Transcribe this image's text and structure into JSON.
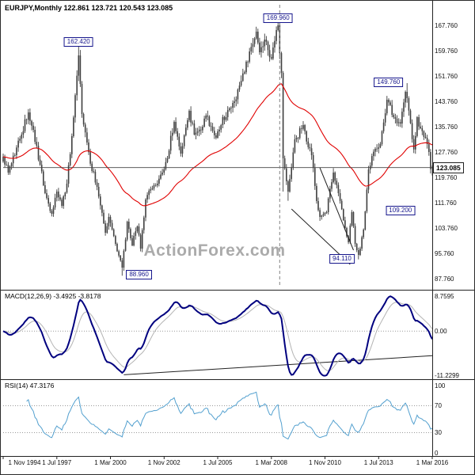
{
  "header": {
    "title": "EURJPY,Monthly 122.861 123.721 120.543 123.085",
    "watermark": "ActionForex.com"
  },
  "colors": {
    "candle": "#3f3f3f",
    "ema": "#e00000",
    "macd": "#00007f",
    "macd_signal": "#b4b4b4",
    "rsi": "#53a0cf",
    "callout": "#16168c",
    "watermark": "#ababab",
    "grid_dotted": "#999999",
    "trendline": "#222222"
  },
  "chart_data": {
    "type": "candlestick",
    "symbol": "EURJPY",
    "timeframe": "Monthly",
    "start_month": "1994-11",
    "end_month": "2016-03",
    "current": {
      "open": 122.861,
      "high": 123.721,
      "low": 120.543,
      "close": 123.085
    },
    "close_anchors": [
      [
        "1994-11",
        126.5
      ],
      [
        "1995-02",
        121.5
      ],
      [
        "1995-06",
        127.0
      ],
      [
        "1995-10",
        133.5
      ],
      [
        "1996-02",
        140.5
      ],
      [
        "1996-05",
        135.0
      ],
      [
        "1996-09",
        124.0
      ],
      [
        "1996-12",
        115.0
      ],
      [
        "1997-04",
        108.5
      ],
      [
        "1997-07",
        115.5
      ],
      [
        "1997-10",
        111.0
      ],
      [
        "1998-01",
        118.0
      ],
      [
        "1998-04",
        133.0
      ],
      [
        "1998-08",
        158.5
      ],
      [
        "1998-10",
        140.0
      ],
      [
        "1999-01",
        131.0
      ],
      [
        "1999-04",
        122.0
      ],
      [
        "1999-07",
        117.0
      ],
      [
        "1999-12",
        102.5
      ],
      [
        "2000-02",
        107.5
      ],
      [
        "2000-06",
        99.0
      ],
      [
        "2000-10",
        91.5
      ],
      [
        "2001-01",
        106.0
      ],
      [
        "2001-04",
        98.5
      ],
      [
        "2001-07",
        104.5
      ],
      [
        "2001-09",
        97.5
      ],
      [
        "2001-12",
        113.0
      ],
      [
        "2002-04",
        116.5
      ],
      [
        "2002-07",
        118.0
      ],
      [
        "2002-10",
        121.5
      ],
      [
        "2003-01",
        126.0
      ],
      [
        "2003-05",
        137.5
      ],
      [
        "2003-09",
        127.5
      ],
      [
        "2004-02",
        141.0
      ],
      [
        "2004-05",
        133.5
      ],
      [
        "2004-10",
        136.0
      ],
      [
        "2004-12",
        139.5
      ],
      [
        "2005-03",
        136.0
      ],
      [
        "2005-06",
        132.5
      ],
      [
        "2005-09",
        136.5
      ],
      [
        "2005-12",
        139.0
      ],
      [
        "2006-04",
        143.5
      ],
      [
        "2006-08",
        149.0
      ],
      [
        "2006-12",
        156.5
      ],
      [
        "2007-06",
        166.0
      ],
      [
        "2007-08",
        159.5
      ],
      [
        "2007-11",
        163.5
      ],
      [
        "2008-03",
        157.5
      ],
      [
        "2008-06",
        166.5
      ],
      [
        "2008-07",
        168.0
      ],
      [
        "2008-09",
        153.0
      ],
      [
        "2008-10",
        126.0
      ],
      [
        "2009-01",
        115.5
      ],
      [
        "2009-05",
        132.0
      ],
      [
        "2009-10",
        136.5
      ],
      [
        "2010-03",
        127.0
      ],
      [
        "2010-06",
        112.5
      ],
      [
        "2010-08",
        107.5
      ],
      [
        "2010-12",
        109.0
      ],
      [
        "2011-04",
        121.5
      ],
      [
        "2011-07",
        115.0
      ],
      [
        "2011-11",
        104.0
      ],
      [
        "2012-01",
        99.5
      ],
      [
        "2012-03",
        109.0
      ],
      [
        "2012-05",
        99.0
      ],
      [
        "2012-07",
        95.5
      ],
      [
        "2012-10",
        103.5
      ],
      [
        "2013-01",
        122.5
      ],
      [
        "2013-05",
        129.0
      ],
      [
        "2013-08",
        130.5
      ],
      [
        "2013-12",
        144.5
      ],
      [
        "2014-04",
        139.0
      ],
      [
        "2014-08",
        137.0
      ],
      [
        "2014-11",
        147.0
      ],
      [
        "2014-12",
        145.0
      ],
      [
        "2015-04",
        128.8
      ],
      [
        "2015-06",
        139.0
      ],
      [
        "2015-08",
        135.5
      ],
      [
        "2015-12",
        130.5
      ],
      [
        "2016-01",
        128.0
      ],
      [
        "2016-02",
        122.6
      ],
      [
        "2016-03",
        123.085
      ]
    ],
    "extremes": [
      {
        "month": "1998-08",
        "high": 162.42
      },
      {
        "month": "2000-10",
        "low": 88.96
      },
      {
        "month": "2008-07",
        "high": 169.96
      },
      {
        "month": "2008-10",
        "low": 115.5
      },
      {
        "month": "2009-01",
        "low": 112.6
      },
      {
        "month": "2012-07",
        "low": 94.11
      },
      {
        "month": "2014-12",
        "high": 149.76
      }
    ],
    "callouts": [
      {
        "value": "162.420",
        "month": "1998-08",
        "price": 162.42,
        "align": "center"
      },
      {
        "value": "169.960",
        "month": "2008-07",
        "price": 169.96,
        "align": "center"
      },
      {
        "value": "149.760",
        "month": "2014-12",
        "price": 149.76,
        "align": "left"
      },
      {
        "value": "109.200",
        "month": "2014-08",
        "price": 109.2,
        "align": "center"
      },
      {
        "value": "94.110",
        "month": "2012-07",
        "price": 94.11,
        "align": "left"
      },
      {
        "value": "88.960",
        "month": "2000-10",
        "price": 88.96,
        "align": "right"
      }
    ],
    "trendlines": [
      {
        "from": [
          "2009-03",
          110.0
        ],
        "to": [
          "2012-02",
          92.5
        ]
      },
      {
        "from": [
          "2010-08",
          123.0
        ],
        "to": [
          "2012-04",
          97.0
        ]
      }
    ],
    "macd_trendline": {
      "from": [
        "2000-11",
        -11.0
      ],
      "to": [
        "2016-03",
        -6.2
      ]
    },
    "vline_month": "2008-08",
    "hline_price": 123.085,
    "y_axis": {
      "labels": [
        "167.760",
        "159.760",
        "151.760",
        "143.760",
        "135.760",
        "127.760",
        "119.760",
        "111.760",
        "103.760",
        "95.760",
        "87.760"
      ],
      "price_tag": "123.085"
    },
    "indicators": {
      "ema_period": 55,
      "macd": {
        "label": "MACD(12,26,9) -3.4925 -3.8178",
        "fast": 12,
        "slow": 26,
        "signal": 9,
        "current": [
          -3.4925,
          -3.8178
        ],
        "axis": [
          "8.7595",
          "0.00",
          "-11.2299"
        ]
      },
      "rsi": {
        "label": "RSI(14) 47.3176",
        "period": 14,
        "current": 47.3176,
        "levels": [
          70,
          30
        ],
        "axis": [
          "100",
          "70",
          "30",
          "0"
        ]
      }
    },
    "x_axis": [
      {
        "label": "1 Nov 1994",
        "month": "1994-11"
      },
      {
        "label": "1 Jul 1997",
        "month": "1997-07"
      },
      {
        "label": "1 Mar 2000",
        "month": "2000-03"
      },
      {
        "label": "1 Nov 2002",
        "month": "2002-11"
      },
      {
        "label": "1 Jul 2005",
        "month": "2005-07"
      },
      {
        "label": "1 Mar 2008",
        "month": "2008-03"
      },
      {
        "label": "1 Nov 2010",
        "month": "2010-11"
      },
      {
        "label": "1 Jul 2013",
        "month": "2013-07"
      },
      {
        "label": "1 Mar 2016",
        "month": "2016-03"
      }
    ]
  }
}
